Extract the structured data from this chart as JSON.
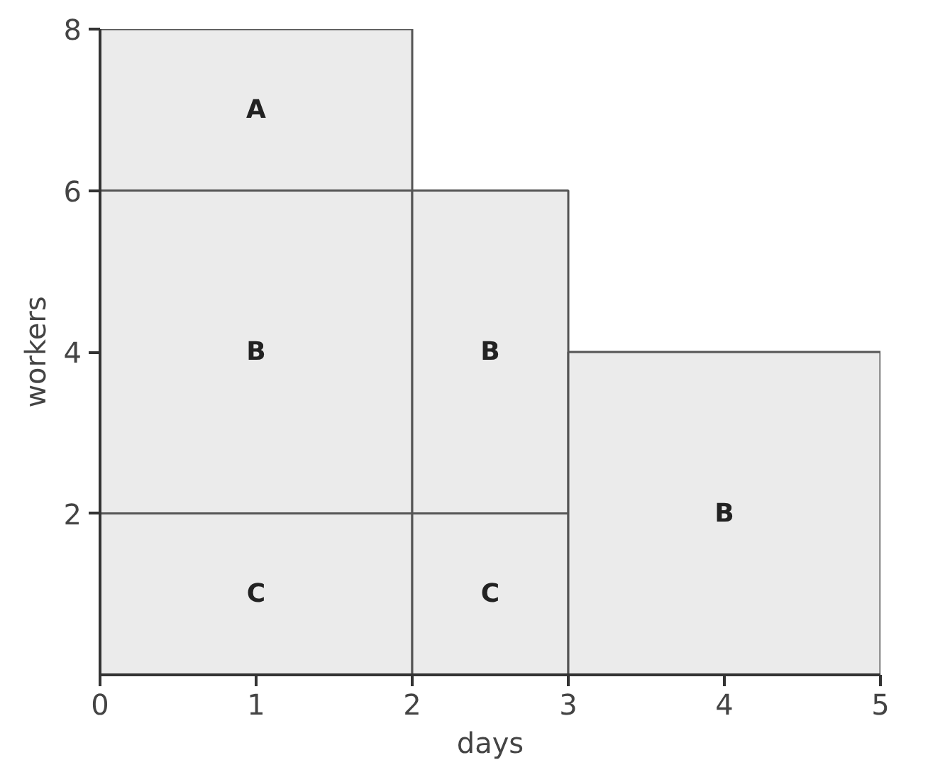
{
  "chart_data": {
    "type": "bar",
    "stacked": true,
    "xlabel": "days",
    "ylabel": "workers",
    "x": [
      1,
      2.5,
      4
    ],
    "series": [
      {
        "name": "C",
        "color": "#ebebeb",
        "values": [
          2,
          2,
          null
        ]
      },
      {
        "name": "B",
        "color": "#ebebeb",
        "values": [
          4,
          4,
          4
        ]
      },
      {
        "name": "A",
        "color": "#ebebeb",
        "values": [
          2,
          null,
          null
        ]
      }
    ],
    "xlim": [
      0,
      5
    ],
    "ylim": [
      0,
      8
    ],
    "xticks": [
      0,
      1,
      2,
      3,
      4,
      5
    ],
    "yticks": [
      2,
      4,
      6,
      8
    ],
    "grid": false
  }
}
